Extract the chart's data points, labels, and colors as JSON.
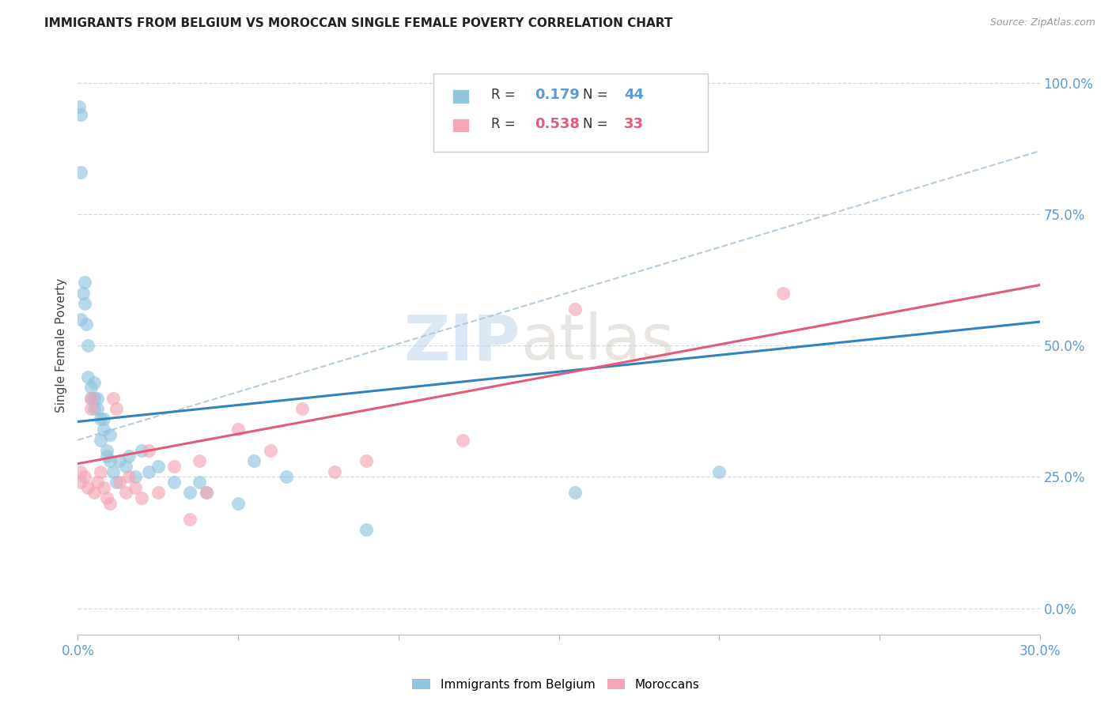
{
  "title": "IMMIGRANTS FROM BELGIUM VS MOROCCAN SINGLE FEMALE POVERTY CORRELATION CHART",
  "source": "Source: ZipAtlas.com",
  "ylabel": "Single Female Poverty",
  "legend_label1": "Immigrants from Belgium",
  "legend_label2": "Moroccans",
  "R1": 0.179,
  "N1": 44,
  "R2": 0.538,
  "N2": 33,
  "xlim": [
    0.0,
    0.3
  ],
  "ylim": [
    0.0,
    1.05
  ],
  "yticks_right": [
    0.0,
    0.25,
    0.5,
    0.75,
    1.0
  ],
  "ytick_labels_right": [
    "0.0%",
    "25.0%",
    "50.0%",
    "75.0%",
    "100.0%"
  ],
  "color_blue": "#92c5de",
  "color_pink": "#f4a6b8",
  "line_color_blue": "#3182bd",
  "line_color_pink": "#e05c7a",
  "line_color_dashed": "#b0c8d8",
  "watermark_zip": "ZIP",
  "watermark_atlas": "atlas",
  "belgium_x": [
    0.0005,
    0.0008,
    0.001,
    0.001,
    0.0015,
    0.002,
    0.002,
    0.0025,
    0.003,
    0.003,
    0.004,
    0.004,
    0.005,
    0.005,
    0.005,
    0.006,
    0.006,
    0.007,
    0.007,
    0.008,
    0.008,
    0.009,
    0.009,
    0.01,
    0.01,
    0.011,
    0.012,
    0.013,
    0.015,
    0.016,
    0.018,
    0.02,
    0.022,
    0.025,
    0.03,
    0.035,
    0.038,
    0.04,
    0.05,
    0.055,
    0.065,
    0.09,
    0.155,
    0.2
  ],
  "belgium_y": [
    0.955,
    0.94,
    0.83,
    0.55,
    0.6,
    0.62,
    0.58,
    0.54,
    0.5,
    0.44,
    0.42,
    0.4,
    0.43,
    0.4,
    0.38,
    0.4,
    0.38,
    0.36,
    0.32,
    0.36,
    0.34,
    0.3,
    0.29,
    0.33,
    0.28,
    0.26,
    0.24,
    0.28,
    0.27,
    0.29,
    0.25,
    0.3,
    0.26,
    0.27,
    0.24,
    0.22,
    0.24,
    0.22,
    0.2,
    0.28,
    0.25,
    0.15,
    0.22,
    0.26
  ],
  "morocco_x": [
    0.001,
    0.001,
    0.002,
    0.003,
    0.004,
    0.004,
    0.005,
    0.006,
    0.007,
    0.008,
    0.009,
    0.01,
    0.011,
    0.012,
    0.013,
    0.015,
    0.016,
    0.018,
    0.02,
    0.022,
    0.025,
    0.03,
    0.035,
    0.038,
    0.04,
    0.05,
    0.06,
    0.07,
    0.08,
    0.09,
    0.12,
    0.155,
    0.22
  ],
  "morocco_y": [
    0.26,
    0.24,
    0.25,
    0.23,
    0.4,
    0.38,
    0.22,
    0.24,
    0.26,
    0.23,
    0.21,
    0.2,
    0.4,
    0.38,
    0.24,
    0.22,
    0.25,
    0.23,
    0.21,
    0.3,
    0.22,
    0.27,
    0.17,
    0.28,
    0.22,
    0.34,
    0.3,
    0.38,
    0.26,
    0.28,
    0.32,
    0.57,
    0.6
  ],
  "blue_line_x": [
    0.0,
    0.3
  ],
  "blue_line_y": [
    0.355,
    0.545
  ],
  "pink_line_x": [
    0.0,
    0.3
  ],
  "pink_line_y": [
    0.275,
    0.615
  ],
  "dashed_line_x": [
    0.0,
    0.3
  ],
  "dashed_line_y": [
    0.32,
    0.87
  ]
}
